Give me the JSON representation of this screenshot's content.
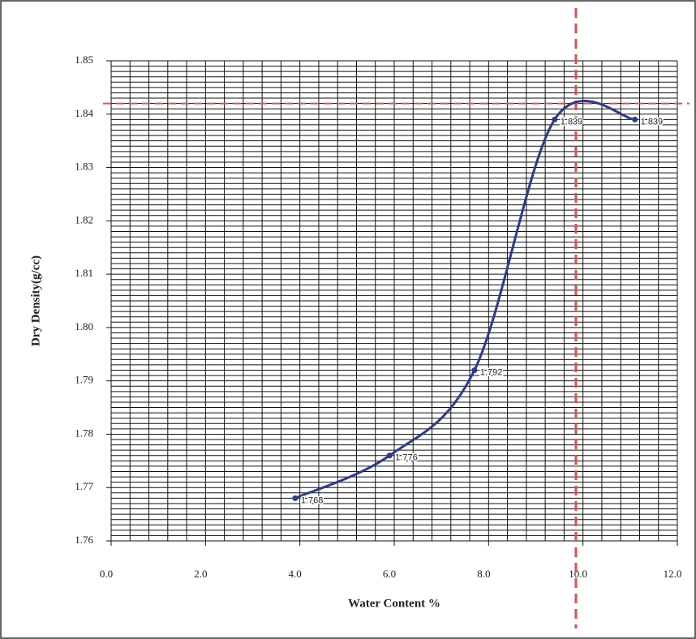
{
  "chart_data": {
    "type": "line",
    "x_label": "Water Content %",
    "y_label": "Dry Density(g/cc)",
    "xlim": [
      0,
      12
    ],
    "xticks": [
      {
        "value": 0,
        "label": "0.0"
      },
      {
        "value": 2,
        "label": "2.0"
      },
      {
        "value": 4,
        "label": "4.0"
      },
      {
        "value": 6,
        "label": "6.0"
      },
      {
        "value": 8,
        "label": "8.0"
      },
      {
        "value": 10,
        "label": "10.0"
      },
      {
        "value": 12,
        "label": "12.0"
      }
    ],
    "ylim": [
      1.76,
      1.85
    ],
    "yticks": [
      1.76,
      1.77,
      1.78,
      1.79,
      {
        "value": 1.8,
        "label": "1.80"
      },
      1.81,
      1.82,
      1.83,
      1.84,
      1.85
    ],
    "grid": true,
    "x_minor_step": 0.4,
    "y_minor_step": 0.001,
    "smooth": true,
    "series": [
      {
        "color": "#2b3a8c",
        "x": [
          3.9,
          5.9,
          7.7,
          9.4,
          11.1
        ],
        "values": [
          1.768,
          1.776,
          1.792,
          1.839,
          1.839
        ],
        "value_labels": [
          "1.768",
          "1.776",
          "1.792",
          "1.839",
          "1.839"
        ]
      }
    ],
    "reference_lines": {
      "x": 9.85,
      "y": 1.842,
      "color": "#d9534f"
    }
  }
}
